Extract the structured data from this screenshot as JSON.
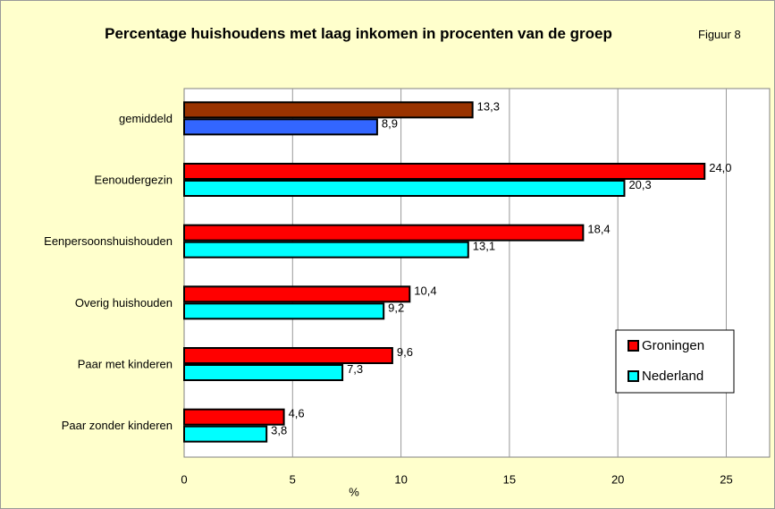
{
  "chart_data": {
    "type": "hbar",
    "title": "Percentage huishoudens met laag inkomen in procenten van de groep",
    "figure_label": "Figuur 8",
    "x_label": "%",
    "categories": [
      "gemiddeld",
      "Eenoudergezin",
      "Eenpersoonshuishouden",
      "Overig huishouden",
      "Paar met kinderen",
      "Paar zonder kinderen"
    ],
    "series": [
      {
        "name": "Groningen",
        "color": "#ff0000",
        "colors": [
          "#993300",
          "#ff0000",
          "#ff0000",
          "#ff0000",
          "#ff0000",
          "#ff0000"
        ],
        "values": [
          13.3,
          24.0,
          18.4,
          10.4,
          9.6,
          4.6
        ],
        "value_labels": [
          "13,3",
          "24,0",
          "18,4",
          "10,4",
          "9,6",
          "4,6"
        ]
      },
      {
        "name": "Nederland",
        "color": "#00ffff",
        "colors": [
          "#3366ff",
          "#00ffff",
          "#00ffff",
          "#00ffff",
          "#00ffff",
          "#00ffff"
        ],
        "values": [
          8.9,
          20.3,
          13.1,
          9.2,
          7.3,
          3.8
        ],
        "value_labels": [
          "8,9",
          "20,3",
          "13,1",
          "9,2",
          "7,3",
          "3,8"
        ]
      }
    ],
    "xlim": [
      0,
      27
    ],
    "xticks": [
      0,
      5,
      10,
      15,
      20,
      25
    ],
    "grid": true,
    "legend": "lower right"
  }
}
